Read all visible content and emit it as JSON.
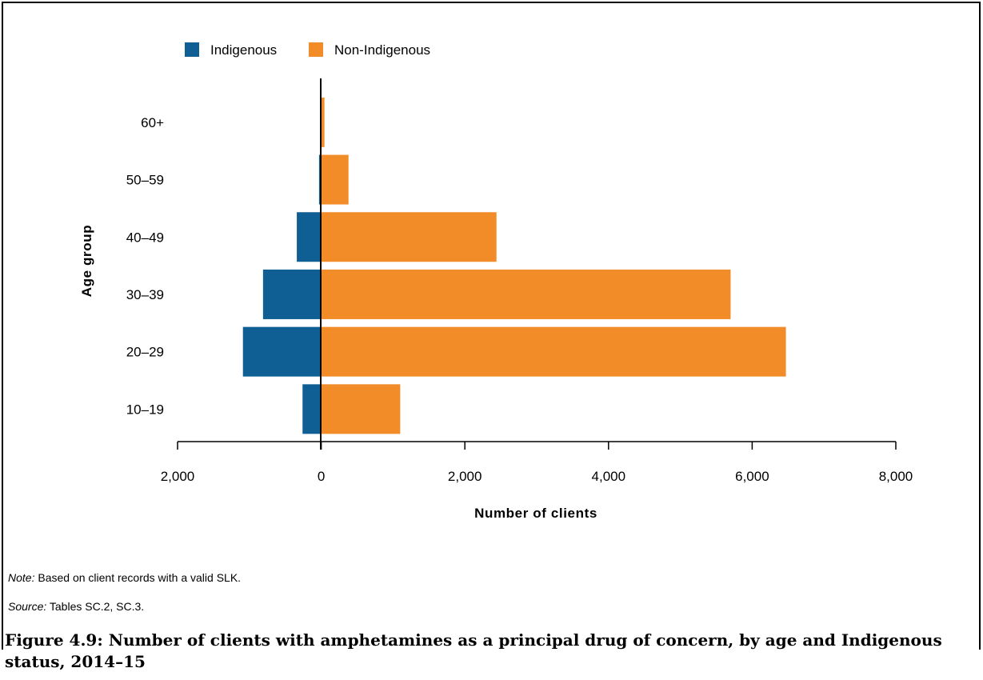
{
  "chart_data": {
    "type": "bar",
    "orientation": "horizontal",
    "layout": "diverging",
    "categories": [
      "10–19",
      "20–29",
      "30–39",
      "40–49",
      "50–59",
      "60+"
    ],
    "series": [
      {
        "name": "Indigenous",
        "color": "#0f5f94",
        "values": [
          260,
          1090,
          810,
          340,
          30,
          5
        ]
      },
      {
        "name": "Non-Indigenous",
        "color": "#f28c28",
        "values": [
          1100,
          6470,
          5700,
          2440,
          380,
          45
        ]
      }
    ],
    "xlabel": "Number of clients",
    "ylabel": "Age group",
    "xlim": [
      -2000,
      8000
    ],
    "x_ticks": [
      -2000,
      0,
      2000,
      4000,
      6000,
      8000
    ],
    "x_tick_labels": [
      "2,000",
      "0",
      "2,000",
      "4,000",
      "6,000",
      "8,000"
    ],
    "legend_position": "top-left",
    "grid": false
  },
  "note": {
    "label": "Note:",
    "text": " Based on client records with a valid SLK."
  },
  "source": {
    "label": "Source:",
    "text": " Tables SC.2, SC.3."
  },
  "caption": "Figure 4.9: Number of clients with amphetamines as a principal drug of concern, by age and Indigenous status, 2014–15"
}
